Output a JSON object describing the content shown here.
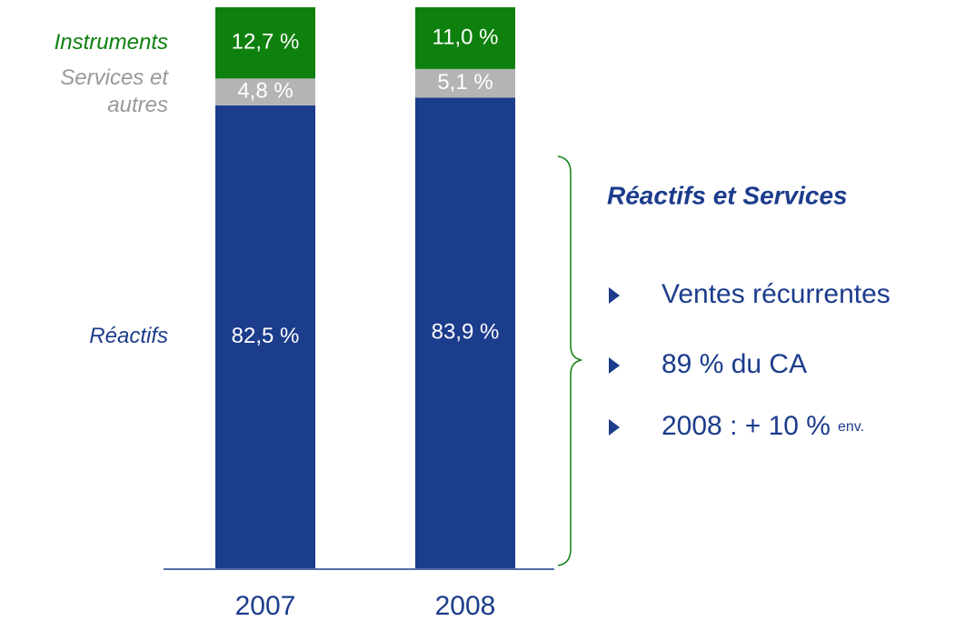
{
  "chart_data": {
    "type": "stacked_bar",
    "categories": [
      "2007",
      "2008"
    ],
    "ylim": [
      0,
      100
    ],
    "series": [
      {
        "name": "Réactifs",
        "color": "#1c3c8c",
        "values": [
          82.5,
          83.9
        ],
        "value_labels": [
          "82,5 %",
          "83,9 %"
        ]
      },
      {
        "name": "Services et autres",
        "color": "#b4b4b4",
        "values": [
          4.8,
          5.1
        ],
        "value_labels": [
          "4,8 %",
          "5,1 %"
        ]
      },
      {
        "name": "Instruments",
        "color": "#0e800e",
        "values": [
          12.7,
          11.0
        ],
        "value_labels": [
          "12,7 %",
          "11,0 %"
        ]
      }
    ],
    "annotation": {
      "title": "Réactifs et Services",
      "bullets": [
        "Ventes récurrentes",
        "89 % du CA",
        "2008 : + 10 %"
      ],
      "bullet_note": "env."
    }
  }
}
